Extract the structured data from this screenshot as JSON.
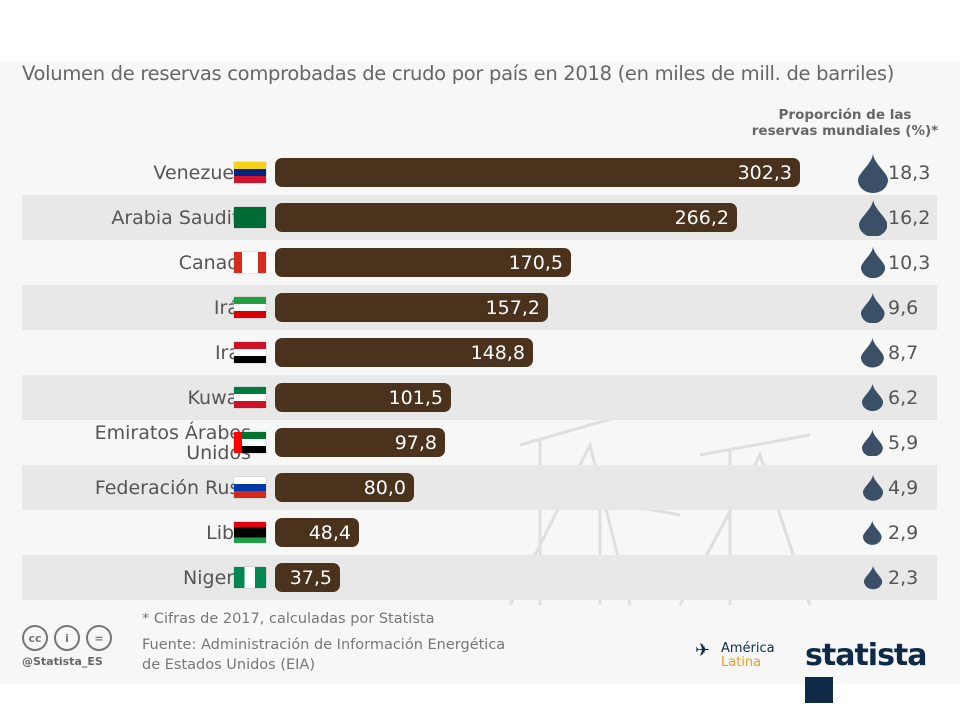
{
  "chart_data": {
    "type": "bar",
    "orientation": "horizontal",
    "title": "Volumen de reservas comprobadas de crudo por país en 2018 (en miles de mill. de barriles)",
    "categories": [
      "Venezuela",
      "Arabia Saudita",
      "Canadá",
      "Irán",
      "Irak",
      "Kuwait",
      "Emiratos Árabes Unidos",
      "Federación Rusa",
      "Libia",
      "Nigeria"
    ],
    "values": [
      302.3,
      266.2,
      170.5,
      157.2,
      148.8,
      101.5,
      97.8,
      80.0,
      48.4,
      37.5
    ],
    "value_labels": [
      "302,3",
      "266,2",
      "170,5",
      "157,2",
      "148,8",
      "101,5",
      "97,8",
      "80,0",
      "48,4",
      "37,5"
    ],
    "share_header": "Proporción de las reservas mundiales (%)*",
    "shares": [
      18.3,
      16.2,
      10.3,
      9.6,
      8.7,
      6.2,
      5.9,
      4.9,
      2.9,
      2.3
    ],
    "share_labels": [
      "18,3",
      "16,2",
      "10,3",
      "9,6",
      "8,7",
      "6,2",
      "5,9",
      "4,9",
      "2,9",
      "2,3"
    ],
    "xlim": [
      0,
      302.3
    ],
    "grid": false
  },
  "colors": {
    "bar": "#4b321c",
    "drop": "#3b4f66"
  },
  "footer": {
    "note": "* Cifras de 2017, calculadas por Statista",
    "source_line1": "Fuente: Administración de Información Energética",
    "source_line2": "de Estados Unidos (EIA)",
    "handle": "@Statista_ES",
    "brand1_a": "América",
    "brand1_b": "Latina",
    "brand2": "statista"
  }
}
